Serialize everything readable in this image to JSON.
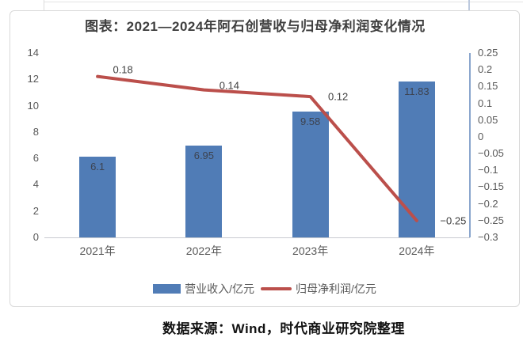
{
  "chart_data": {
    "type": "combo",
    "title": "图表：2021—2024年阿石创营收与归母净利润变化情况",
    "categories": [
      "2021年",
      "2022年",
      "2023年",
      "2024年"
    ],
    "series": [
      {
        "name": "营业收入/亿元",
        "type": "bar",
        "axis": "left",
        "values": [
          6.1,
          6.95,
          9.58,
          11.83
        ]
      },
      {
        "name": "归母净利润/亿元",
        "type": "line",
        "axis": "right",
        "values": [
          0.18,
          0.14,
          0.12,
          -0.25
        ]
      }
    ],
    "axes": {
      "left": {
        "min": 0,
        "max": 14,
        "step": 2
      },
      "right": {
        "min": -0.3,
        "max": 0.25,
        "step": 0.05
      }
    },
    "grid": false,
    "data_labels": true,
    "legend_position": "bottom",
    "colors": {
      "bar": "#507cb6",
      "line": "#bb4f4b",
      "right_axis_line": "#8aa6cd",
      "bottom_axis_line": "#c8cbd1",
      "axis_text": "#595959",
      "label_text": "#3f3f3f",
      "panel_border": "#d9d9d9"
    }
  },
  "source_note": "数据来源：Wind，时代商业研究院整理"
}
